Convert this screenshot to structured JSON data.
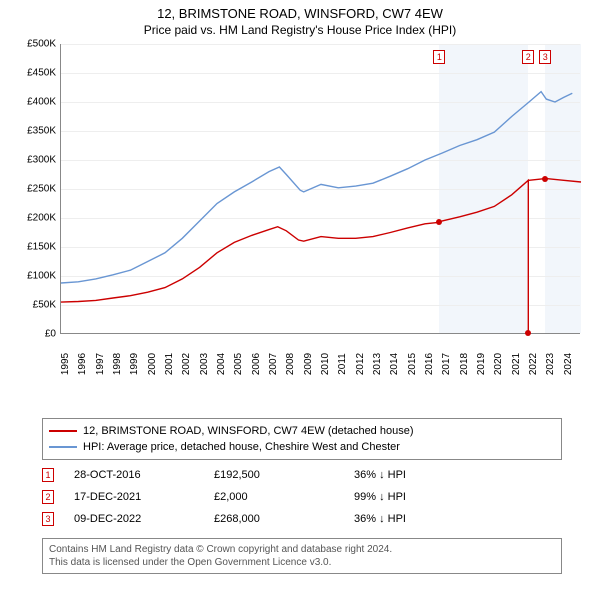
{
  "title": "12, BRIMSTONE ROAD, WINSFORD, CW7 4EW",
  "subtitle": "Price paid vs. HM Land Registry's House Price Index (HPI)",
  "chart": {
    "type": "line",
    "background_color": "#ffffff",
    "grid_color": "#eeeeee",
    "axis_color": "#888888",
    "shade_color": "#f2f6fb",
    "xlim": [
      1995,
      2025
    ],
    "ylim": [
      0,
      500000
    ],
    "ytick_step": 50000,
    "yticks": [
      "£0",
      "£50K",
      "£100K",
      "£150K",
      "£200K",
      "£250K",
      "£300K",
      "£350K",
      "£400K",
      "£450K",
      "£500K"
    ],
    "xticks": [
      1995,
      1996,
      1997,
      1998,
      1999,
      2000,
      2001,
      2002,
      2003,
      2004,
      2005,
      2006,
      2007,
      2008,
      2009,
      2010,
      2011,
      2012,
      2013,
      2014,
      2015,
      2016,
      2017,
      2018,
      2019,
      2020,
      2021,
      2022,
      2023,
      2024
    ],
    "shaded_regions": [
      [
        2016.83,
        2021.96
      ],
      [
        2022.94,
        2025
      ]
    ],
    "series": [
      {
        "name": "property",
        "color": "#cc0000",
        "line_width": 1.4,
        "points": [
          [
            1995,
            55000
          ],
          [
            1996,
            56000
          ],
          [
            1997,
            58000
          ],
          [
            1998,
            62000
          ],
          [
            1999,
            66000
          ],
          [
            2000,
            72000
          ],
          [
            2001,
            80000
          ],
          [
            2002,
            95000
          ],
          [
            2003,
            115000
          ],
          [
            2004,
            140000
          ],
          [
            2005,
            158000
          ],
          [
            2006,
            170000
          ],
          [
            2007,
            180000
          ],
          [
            2007.5,
            185000
          ],
          [
            2008,
            178000
          ],
          [
            2008.7,
            162000
          ],
          [
            2009,
            160000
          ],
          [
            2010,
            168000
          ],
          [
            2011,
            165000
          ],
          [
            2012,
            165000
          ],
          [
            2013,
            168000
          ],
          [
            2014,
            175000
          ],
          [
            2015,
            183000
          ],
          [
            2016,
            190000
          ],
          [
            2016.83,
            192500
          ],
          [
            2017,
            195000
          ],
          [
            2018,
            202000
          ],
          [
            2019,
            210000
          ],
          [
            2020,
            220000
          ],
          [
            2021,
            240000
          ],
          [
            2021.96,
            265000
          ],
          [
            2021.961,
            2000
          ],
          [
            2021.962,
            265000
          ],
          [
            2022,
            265000
          ],
          [
            2022.94,
            268000
          ],
          [
            2023,
            268000
          ],
          [
            2024,
            265000
          ],
          [
            2025,
            262000
          ]
        ]
      },
      {
        "name": "hpi",
        "color": "#6996d3",
        "line_width": 1.4,
        "points": [
          [
            1995,
            88000
          ],
          [
            1996,
            90000
          ],
          [
            1997,
            95000
          ],
          [
            1998,
            102000
          ],
          [
            1999,
            110000
          ],
          [
            2000,
            125000
          ],
          [
            2001,
            140000
          ],
          [
            2002,
            165000
          ],
          [
            2003,
            195000
          ],
          [
            2004,
            225000
          ],
          [
            2005,
            245000
          ],
          [
            2006,
            262000
          ],
          [
            2007,
            280000
          ],
          [
            2007.6,
            288000
          ],
          [
            2008,
            275000
          ],
          [
            2008.8,
            248000
          ],
          [
            2009,
            245000
          ],
          [
            2010,
            258000
          ],
          [
            2011,
            252000
          ],
          [
            2012,
            255000
          ],
          [
            2013,
            260000
          ],
          [
            2014,
            272000
          ],
          [
            2015,
            285000
          ],
          [
            2016,
            300000
          ],
          [
            2017,
            312000
          ],
          [
            2018,
            325000
          ],
          [
            2019,
            335000
          ],
          [
            2020,
            348000
          ],
          [
            2021,
            375000
          ],
          [
            2022,
            400000
          ],
          [
            2022.7,
            418000
          ],
          [
            2023,
            405000
          ],
          [
            2023.5,
            400000
          ],
          [
            2024,
            408000
          ],
          [
            2024.5,
            415000
          ]
        ]
      }
    ],
    "markers": [
      {
        "num": "1",
        "x": 2016.83,
        "y": 192500
      },
      {
        "num": "2",
        "x": 2021.96,
        "y": 2000
      },
      {
        "num": "3",
        "x": 2022.94,
        "y": 268000
      }
    ]
  },
  "legend": [
    {
      "color": "#cc0000",
      "label": "12, BRIMSTONE ROAD, WINSFORD, CW7 4EW (detached house)"
    },
    {
      "color": "#6996d3",
      "label": "HPI: Average price, detached house, Cheshire West and Chester"
    }
  ],
  "events": [
    {
      "num": "1",
      "date": "28-OCT-2016",
      "price": "£192,500",
      "diff": "36% ↓ HPI"
    },
    {
      "num": "2",
      "date": "17-DEC-2021",
      "price": "£2,000",
      "diff": "99% ↓ HPI"
    },
    {
      "num": "3",
      "date": "09-DEC-2022",
      "price": "£268,000",
      "diff": "36% ↓ HPI"
    }
  ],
  "footer": {
    "line1": "Contains HM Land Registry data © Crown copyright and database right 2024.",
    "line2": "This data is licensed under the Open Government Licence v3.0."
  }
}
